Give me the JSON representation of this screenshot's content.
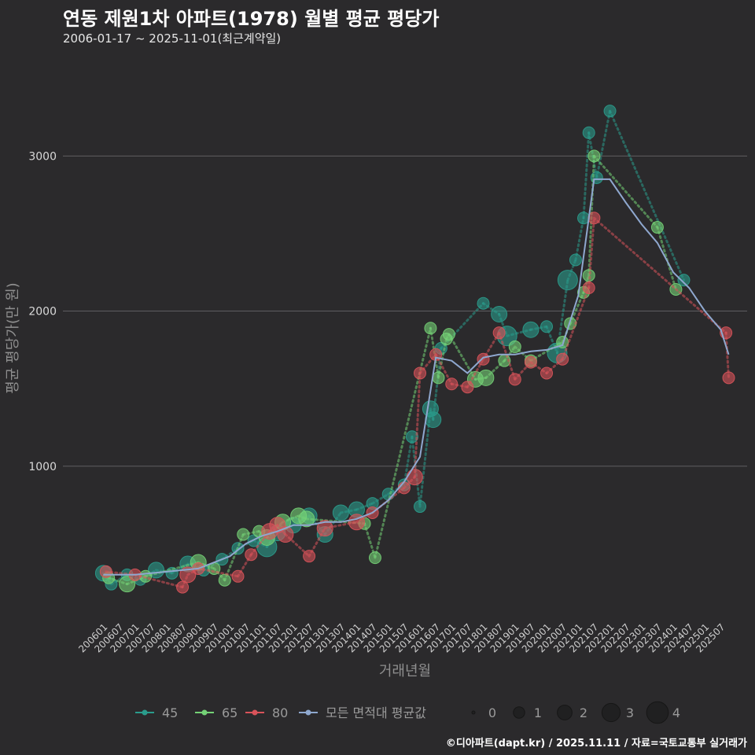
{
  "title": "연동 제원1차 아파트(1978) 월별 평균 평당가",
  "subtitle": "2006-01-17 ~ 2025-11-01(최근계약일)",
  "caption": "©디아파트(dapt.kr) / 2025.11.11 / 자료=국토교통부 실거래가",
  "colors": {
    "background": "#2b2a2c",
    "grid": "#5f5e61",
    "s45": "#2a9c8c",
    "s65": "#74d276",
    "s80": "#d9535a",
    "avg": "#8fa8cf",
    "size_legend": "#1f1e20"
  },
  "chart_data": {
    "type": "scatter",
    "title": "연동 제원1차 아파트(1978) 월별 평균 평당가",
    "xlabel": "거래년월",
    "ylabel": "평균 평당가(만 원)",
    "ylim": [
      0,
      3600
    ],
    "yticks": [
      1000,
      2000,
      3000
    ],
    "grid": true,
    "legend_position": "bottom",
    "x_ticks": [
      "200601",
      "200607",
      "200701",
      "200707",
      "200801",
      "200807",
      "200901",
      "200907",
      "201001",
      "201007",
      "201101",
      "201107",
      "201201",
      "201207",
      "201301",
      "201307",
      "201401",
      "201407",
      "201501",
      "201507",
      "201601",
      "201607",
      "201701",
      "201707",
      "201801",
      "201807",
      "201901",
      "201907",
      "202001",
      "202007",
      "202101",
      "202107",
      "202201",
      "202207",
      "202301",
      "202307",
      "202401",
      "202407",
      "202501",
      "202507"
    ],
    "series": [
      {
        "name": "45",
        "points": [
          {
            "x": "200601",
            "y": 310,
            "n": 2
          },
          {
            "x": "200604",
            "y": 240,
            "n": 1
          },
          {
            "x": "200610",
            "y": 300,
            "n": 1
          },
          {
            "x": "200703",
            "y": 270,
            "n": 1
          },
          {
            "x": "200709",
            "y": 330,
            "n": 2
          },
          {
            "x": "200803",
            "y": 310,
            "n": 1
          },
          {
            "x": "200809",
            "y": 370,
            "n": 2
          },
          {
            "x": "200903",
            "y": 330,
            "n": 1
          },
          {
            "x": "200910",
            "y": 400,
            "n": 1
          },
          {
            "x": "201004",
            "y": 470,
            "n": 1
          },
          {
            "x": "201010",
            "y": 520,
            "n": 1
          },
          {
            "x": "201103",
            "y": 480,
            "n": 3
          },
          {
            "x": "201107",
            "y": 570,
            "n": 2
          },
          {
            "x": "201201",
            "y": 620,
            "n": 2
          },
          {
            "x": "201207",
            "y": 680,
            "n": 2
          },
          {
            "x": "201301",
            "y": 560,
            "n": 2
          },
          {
            "x": "201307",
            "y": 700,
            "n": 2
          },
          {
            "x": "201401",
            "y": 720,
            "n": 2
          },
          {
            "x": "201407",
            "y": 760,
            "n": 1
          },
          {
            "x": "201501",
            "y": 820,
            "n": 1
          },
          {
            "x": "201507",
            "y": 880,
            "n": 1
          },
          {
            "x": "201510",
            "y": 1190,
            "n": 1
          },
          {
            "x": "201601",
            "y": 740,
            "n": 1
          },
          {
            "x": "201605",
            "y": 1370,
            "n": 2
          },
          {
            "x": "201606",
            "y": 1300,
            "n": 2
          },
          {
            "x": "201609",
            "y": 1760,
            "n": 1
          },
          {
            "x": "201801",
            "y": 2050,
            "n": 1
          },
          {
            "x": "201807",
            "y": 1980,
            "n": 2
          },
          {
            "x": "201810",
            "y": 1840,
            "n": 3
          },
          {
            "x": "201907",
            "y": 1880,
            "n": 2
          },
          {
            "x": "202001",
            "y": 1900,
            "n": 1
          },
          {
            "x": "202005",
            "y": 1730,
            "n": 3
          },
          {
            "x": "202009",
            "y": 2200,
            "n": 3
          },
          {
            "x": "202012",
            "y": 2330,
            "n": 1
          },
          {
            "x": "202103",
            "y": 2600,
            "n": 1
          },
          {
            "x": "202105",
            "y": 3150,
            "n": 1
          },
          {
            "x": "202108",
            "y": 2860,
            "n": 1
          },
          {
            "x": "202201",
            "y": 3290,
            "n": 1
          },
          {
            "x": "202405",
            "y": 2200,
            "n": 1
          }
        ]
      },
      {
        "name": "65",
        "points": [
          {
            "x": "200603",
            "y": 280,
            "n": 1
          },
          {
            "x": "200610",
            "y": 240,
            "n": 2
          },
          {
            "x": "200705",
            "y": 290,
            "n": 1
          },
          {
            "x": "200901",
            "y": 380,
            "n": 2
          },
          {
            "x": "200907",
            "y": 340,
            "n": 1
          },
          {
            "x": "200911",
            "y": 265,
            "n": 1
          },
          {
            "x": "201006",
            "y": 560,
            "n": 1
          },
          {
            "x": "201012",
            "y": 580,
            "n": 1
          },
          {
            "x": "201103",
            "y": 540,
            "n": 2
          },
          {
            "x": "201109",
            "y": 640,
            "n": 2
          },
          {
            "x": "201203",
            "y": 680,
            "n": 2
          },
          {
            "x": "201206",
            "y": 660,
            "n": 2
          },
          {
            "x": "201404",
            "y": 630,
            "n": 1
          },
          {
            "x": "201408",
            "y": 410,
            "n": 1
          },
          {
            "x": "201605",
            "y": 1890,
            "n": 1
          },
          {
            "x": "201608",
            "y": 1570,
            "n": 1
          },
          {
            "x": "201611",
            "y": 1820,
            "n": 1
          },
          {
            "x": "201612",
            "y": 1850,
            "n": 1
          },
          {
            "x": "201710",
            "y": 1560,
            "n": 2
          },
          {
            "x": "201802",
            "y": 1570,
            "n": 2
          },
          {
            "x": "201809",
            "y": 1680,
            "n": 1
          },
          {
            "x": "201901",
            "y": 1770,
            "n": 1
          },
          {
            "x": "201907",
            "y": 1680,
            "n": 1
          },
          {
            "x": "202007",
            "y": 1800,
            "n": 1
          },
          {
            "x": "202010",
            "y": 1920,
            "n": 1
          },
          {
            "x": "202103",
            "y": 2120,
            "n": 1
          },
          {
            "x": "202105",
            "y": 2230,
            "n": 1
          },
          {
            "x": "202107",
            "y": 3000,
            "n": 1
          },
          {
            "x": "202307",
            "y": 2540,
            "n": 1
          },
          {
            "x": "202402",
            "y": 2140,
            "n": 1
          }
        ]
      },
      {
        "name": "80",
        "points": [
          {
            "x": "200602",
            "y": 320,
            "n": 1
          },
          {
            "x": "200701",
            "y": 300,
            "n": 1
          },
          {
            "x": "200807",
            "y": 220,
            "n": 1
          },
          {
            "x": "200809",
            "y": 300,
            "n": 2
          },
          {
            "x": "200901",
            "y": 340,
            "n": 1
          },
          {
            "x": "201004",
            "y": 290,
            "n": 1
          },
          {
            "x": "201009",
            "y": 430,
            "n": 1
          },
          {
            "x": "201104",
            "y": 580,
            "n": 2
          },
          {
            "x": "201107",
            "y": 620,
            "n": 2
          },
          {
            "x": "201110",
            "y": 560,
            "n": 2
          },
          {
            "x": "201207",
            "y": 420,
            "n": 1
          },
          {
            "x": "201301",
            "y": 600,
            "n": 2
          },
          {
            "x": "201401",
            "y": 640,
            "n": 2
          },
          {
            "x": "201407",
            "y": 700,
            "n": 1
          },
          {
            "x": "201507",
            "y": 860,
            "n": 1
          },
          {
            "x": "201511",
            "y": 930,
            "n": 2
          },
          {
            "x": "201601",
            "y": 1600,
            "n": 1
          },
          {
            "x": "201607",
            "y": 1720,
            "n": 1
          },
          {
            "x": "201701",
            "y": 1530,
            "n": 1
          },
          {
            "x": "201707",
            "y": 1510,
            "n": 1
          },
          {
            "x": "201801",
            "y": 1690,
            "n": 1
          },
          {
            "x": "201807",
            "y": 1860,
            "n": 1
          },
          {
            "x": "201901",
            "y": 1560,
            "n": 1
          },
          {
            "x": "201907",
            "y": 1670,
            "n": 1
          },
          {
            "x": "202001",
            "y": 1600,
            "n": 1
          },
          {
            "x": "202007",
            "y": 1690,
            "n": 1
          },
          {
            "x": "202105",
            "y": 2150,
            "n": 1
          },
          {
            "x": "202107",
            "y": 2600,
            "n": 1
          },
          {
            "x": "202509",
            "y": 1860,
            "n": 1
          },
          {
            "x": "202510",
            "y": 1570,
            "n": 1
          }
        ]
      }
    ],
    "average_line": {
      "name": "모든 면적대 평균값",
      "points": [
        {
          "x": "200601",
          "y": 300
        },
        {
          "x": "200701",
          "y": 300
        },
        {
          "x": "200801",
          "y": 320
        },
        {
          "x": "200901",
          "y": 340
        },
        {
          "x": "200907",
          "y": 380
        },
        {
          "x": "201001",
          "y": 420
        },
        {
          "x": "201007",
          "y": 500
        },
        {
          "x": "201101",
          "y": 550
        },
        {
          "x": "201107",
          "y": 580
        },
        {
          "x": "201201",
          "y": 620
        },
        {
          "x": "201207",
          "y": 620
        },
        {
          "x": "201301",
          "y": 640
        },
        {
          "x": "201307",
          "y": 640
        },
        {
          "x": "201401",
          "y": 660
        },
        {
          "x": "201407",
          "y": 700
        },
        {
          "x": "201501",
          "y": 780
        },
        {
          "x": "201507",
          "y": 900
        },
        {
          "x": "201601",
          "y": 1060
        },
        {
          "x": "201607",
          "y": 1700
        },
        {
          "x": "201701",
          "y": 1680
        },
        {
          "x": "201707",
          "y": 1600
        },
        {
          "x": "201801",
          "y": 1700
        },
        {
          "x": "201807",
          "y": 1720
        },
        {
          "x": "201901",
          "y": 1720
        },
        {
          "x": "201907",
          "y": 1740
        },
        {
          "x": "202001",
          "y": 1750
        },
        {
          "x": "202007",
          "y": 1780
        },
        {
          "x": "202101",
          "y": 2100
        },
        {
          "x": "202107",
          "y": 2850
        },
        {
          "x": "202201",
          "y": 2850
        },
        {
          "x": "202207",
          "y": 2700
        },
        {
          "x": "202301",
          "y": 2560
        },
        {
          "x": "202307",
          "y": 2440
        },
        {
          "x": "202401",
          "y": 2250
        },
        {
          "x": "202407",
          "y": 2150
        },
        {
          "x": "202501",
          "y": 2000
        },
        {
          "x": "202507",
          "y": 1880
        },
        {
          "x": "202510",
          "y": 1720
        }
      ]
    },
    "size_legend": [
      {
        "label": "0",
        "n": 0
      },
      {
        "label": "1",
        "n": 1
      },
      {
        "label": "2",
        "n": 2
      },
      {
        "label": "3",
        "n": 3
      },
      {
        "label": "4",
        "n": 4
      }
    ]
  }
}
